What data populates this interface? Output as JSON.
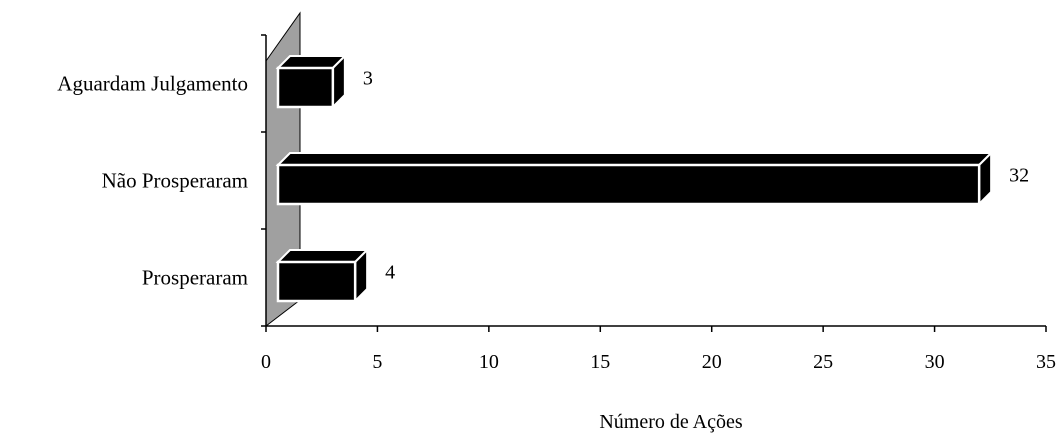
{
  "chart_data": {
    "type": "bar",
    "orientation": "horizontal",
    "style": "3d",
    "categories": [
      "Aguardam Julgamento",
      "Não Prosperaram",
      "Prosperaram"
    ],
    "values": [
      3,
      32,
      4
    ],
    "data_labels": [
      "3",
      "32",
      "4"
    ],
    "xlabel": "Número de Ações",
    "ylabel": "",
    "xlim": [
      0,
      35
    ],
    "x_ticks": [
      0,
      5,
      10,
      15,
      20,
      25,
      30,
      35
    ],
    "x_tick_labels": [
      "0",
      "5",
      "10",
      "15",
      "20",
      "25",
      "30",
      "35"
    ],
    "grid": false,
    "legend": "none",
    "colors": {
      "bar": "#000000",
      "bar_outline": "#ffffff",
      "back_wall": "#a0a0a0",
      "axis": "#000000"
    }
  }
}
